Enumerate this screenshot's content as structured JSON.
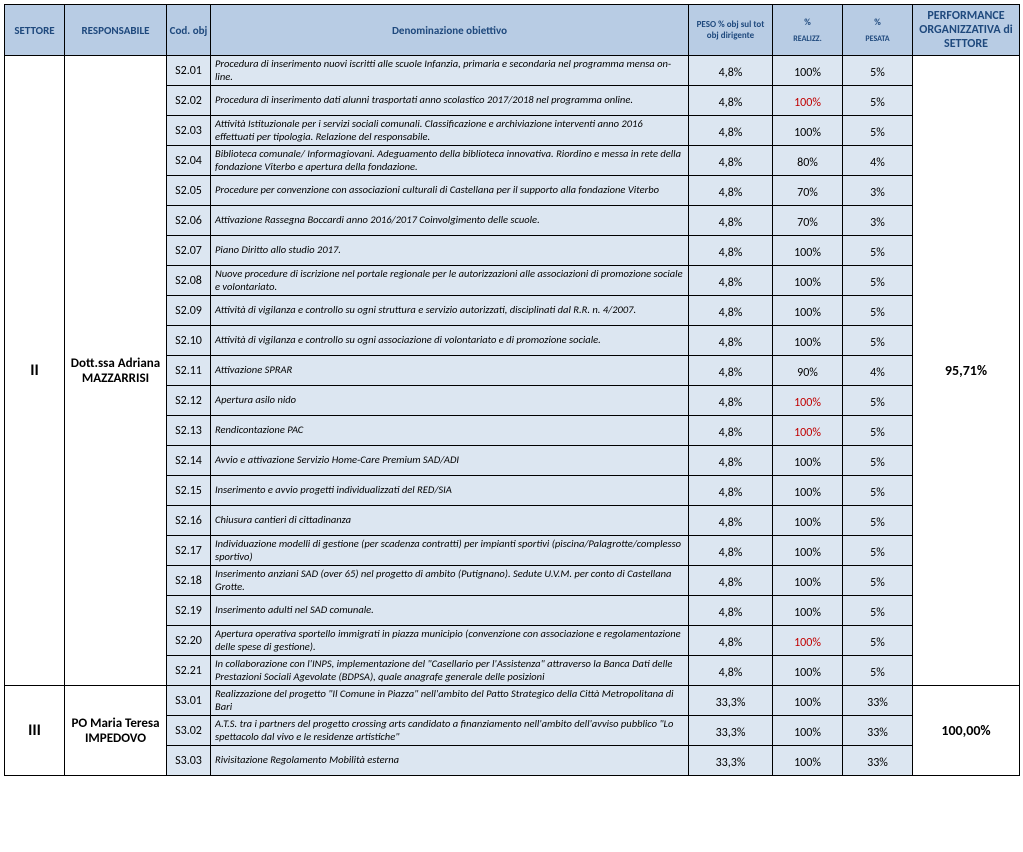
{
  "headers": {
    "settore": "SETTORE",
    "responsabile": "RESPONSABILE",
    "cod": "Cod. obj",
    "denom": "Denominazione obiettivo",
    "peso": "PESO % obj sul tot obj dirigente",
    "realizz_top": "%",
    "realizz_sub": "REALIZZ.",
    "pesata_top": "%",
    "pesata_sub": "PESATA",
    "perf": "PERFORMANCE ORGANIZZATIVA di SETTORE"
  },
  "sectors": [
    {
      "settore": "II",
      "responsabile": "Dott.ssa Adriana MAZZARRISI",
      "performance": "95,71%",
      "rows": [
        {
          "cod": "S2.01",
          "denom": "Procedura di inserimento nuovi iscritti alle scuole Infanzia, primaria e secondaria nel programma mensa on-line.",
          "peso": "4,8%",
          "realizz": "100%",
          "realizz_red": false,
          "pesata": "5%"
        },
        {
          "cod": "S2.02",
          "denom": " Procedura di inserimento dati alunni trasportati anno scolastico 2017/2018 nel programma online.",
          "peso": "4,8%",
          "realizz": "100%",
          "realizz_red": true,
          "pesata": "5%"
        },
        {
          "cod": "S2.03",
          "denom": "Attività Istituzionale per i servizi sociali comunali. Classificazione e archiviazione interventi anno 2016 effettuati per tipologia. Relazione del responsabile.",
          "peso": "4,8%",
          "realizz": "100%",
          "realizz_red": false,
          "pesata": "5%"
        },
        {
          "cod": "S2.04",
          "denom": "Biblioteca comunale/ Informagiovani. Adeguamento della biblioteca innovativa. Riordino e messa in rete della fondazione Viterbo e apertura della fondazione.",
          "peso": "4,8%",
          "realizz": "80%",
          "realizz_red": false,
          "pesata": "4%"
        },
        {
          "cod": "S2.05",
          "denom": "Procedure per convenzione con associazioni culturali di Castellana per il supporto alla fondazione Viterbo",
          "peso": "4,8%",
          "realizz": "70%",
          "realizz_red": false,
          "pesata": "3%"
        },
        {
          "cod": "S2.06",
          "denom": "Attivazione Rassegna Boccardi anno 2016/2017 Coinvolgimento delle scuole.",
          "peso": "4,8%",
          "realizz": "70%",
          "realizz_red": false,
          "pesata": "3%"
        },
        {
          "cod": "S2.07",
          "denom": "Piano Diritto allo studio 2017.",
          "peso": "4,8%",
          "realizz": "100%",
          "realizz_red": false,
          "pesata": "5%"
        },
        {
          "cod": "S2.08",
          "denom": "Nuove procedure di iscrizione nel portale regionale per le autorizzazioni alle associazioni di promozione sociale e volontariato.",
          "peso": "4,8%",
          "realizz": "100%",
          "realizz_red": false,
          "pesata": "5%"
        },
        {
          "cod": "S2.09",
          "denom": "Attività di vigilanza e controllo su ogni struttura e servizio autorizzati, disciplinati dal R.R. n. 4/2007.",
          "peso": "4,8%",
          "realizz": "100%",
          "realizz_red": false,
          "pesata": "5%"
        },
        {
          "cod": "S2.10",
          "denom": "Attività di vigilanza e controllo su ogni associazione di volontariato e di promozione sociale.",
          "peso": "4,8%",
          "realizz": "100%",
          "realizz_red": false,
          "pesata": "5%"
        },
        {
          "cod": "S2.11",
          "denom": "Attivazione SPRAR",
          "peso": "4,8%",
          "realizz": "90%",
          "realizz_red": false,
          "pesata": "4%"
        },
        {
          "cod": "S2.12",
          "denom": "Apertura asilo nido",
          "peso": "4,8%",
          "realizz": "100%",
          "realizz_red": true,
          "pesata": "5%"
        },
        {
          "cod": "S2.13",
          "denom": "Rendicontazione PAC",
          "peso": "4,8%",
          "realizz": "100%",
          "realizz_red": true,
          "pesata": "5%"
        },
        {
          "cod": "S2.14",
          "denom": "Avvio e attivazione Servizio Home-Care Premium SAD/ADI",
          "peso": "4,8%",
          "realizz": "100%",
          "realizz_red": false,
          "pesata": "5%"
        },
        {
          "cod": "S2.15",
          "denom": "Inserimento e avvio progetti individualizzati del RED/SIA",
          "peso": "4,8%",
          "realizz": "100%",
          "realizz_red": false,
          "pesata": "5%"
        },
        {
          "cod": "S2.16",
          "denom": "Chiusura cantieri di cittadinanza",
          "peso": "4,8%",
          "realizz": "100%",
          "realizz_red": false,
          "pesata": "5%"
        },
        {
          "cod": "S2.17",
          "denom": "Individuazione modelli di gestione (per scadenza contratti) per impianti sportivi (piscina/Palagrotte/complesso sportivo)",
          "peso": "4,8%",
          "realizz": "100%",
          "realizz_red": false,
          "pesata": "5%"
        },
        {
          "cod": "S2.18",
          "denom": "Inserimento anziani SAD (over 65) nel progetto di ambito (Putignano). Sedute U.V.M. per conto di Castellana Grotte.",
          "peso": "4,8%",
          "realizz": "100%",
          "realizz_red": false,
          "pesata": "5%"
        },
        {
          "cod": "S2.19",
          "denom": "Inserimento adulti nel SAD comunale.",
          "peso": "4,8%",
          "realizz": "100%",
          "realizz_red": false,
          "pesata": "5%"
        },
        {
          "cod": "S2.20",
          "denom": "Apertura operativa sportello immigrati in piazza municipio (convenzione con associazione e regolamentazione delle spese di gestione).",
          "peso": "4,8%",
          "realizz": "100%",
          "realizz_red": true,
          "pesata": "5%"
        },
        {
          "cod": "S2.21",
          "denom": "In collaborazione con l'INPS, implementazione del \"Casellario per l'Assistenza\" attraverso la Banca Dati delle Prestazioni Sociali Agevolate (BDPSA), quale anagrafe generale delle posizioni",
          "peso": "4,8%",
          "realizz": "100%",
          "realizz_red": false,
          "pesata": "5%"
        }
      ]
    },
    {
      "settore": "III",
      "responsabile": "PO Maria Teresa IMPEDOVO",
      "performance": "100,00%",
      "rows": [
        {
          "cod": "S3.01",
          "denom": "Realizzazione del progetto \"Il Comune in Piazza\" nell'ambito del Patto Strategico della Città Metropolitana di Bari",
          "peso": "33,3%",
          "realizz": "100%",
          "realizz_red": false,
          "pesata": "33%"
        },
        {
          "cod": "S3.02",
          "denom": "A.T.S. tra i partners del progetto crossing arts candidato a finanziamento nell'ambito dell'avviso pubblico \"Lo spettacolo dal vivo e le residenze artistiche\"",
          "peso": "33,3%",
          "realizz": "100%",
          "realizz_red": false,
          "pesata": "33%"
        },
        {
          "cod": "S3.03",
          "denom": "Rivisitazione Regolamento Mobilità esterna",
          "peso": "33,3%",
          "realizz": "100%",
          "realizz_red": false,
          "pesata": "33%"
        }
      ]
    }
  ],
  "colors": {
    "header_bg": "#b8cce4",
    "header_fg": "#1f497d",
    "cell_bg": "#dce6f1",
    "border": "#000000",
    "red_text": "#c00000"
  }
}
